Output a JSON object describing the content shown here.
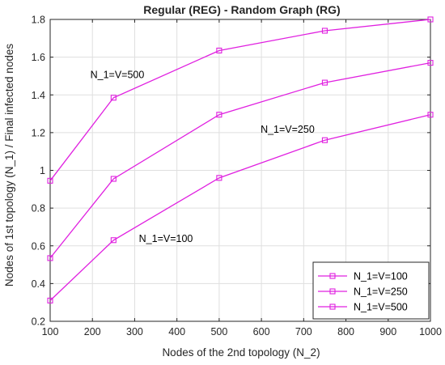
{
  "chart_data": {
    "type": "line",
    "title": "Regular (REG) - Random Graph (RG)",
    "xlabel": "Nodes of the 2nd topology (N_2)",
    "ylabel": "Nodes of 1st topology (N_1) / Final infected nodes",
    "xlim": [
      100,
      1000
    ],
    "ylim": [
      0.2,
      1.8
    ],
    "xticks": [
      100,
      200,
      300,
      400,
      500,
      600,
      700,
      800,
      900,
      1000
    ],
    "yticks": [
      0.2,
      0.4,
      0.6,
      0.8,
      1,
      1.2,
      1.4,
      1.6,
      1.8
    ],
    "xtick_labels": [
      "100",
      "200",
      "300",
      "400",
      "500",
      "600",
      "700",
      "800",
      "900",
      "1000"
    ],
    "ytick_labels": [
      "0.2",
      "0.4",
      "0.6",
      "0.8",
      "1",
      "1.2",
      "1.4",
      "1.6",
      "1.8"
    ],
    "grid": true,
    "legend_position": "bottom-right",
    "line_color": "#e020e0",
    "marker": "square",
    "x": [
      100,
      250,
      500,
      750,
      1000
    ],
    "series": [
      {
        "name": "N_1=V=100",
        "values": [
          0.31,
          0.63,
          0.96,
          1.16,
          1.295
        ]
      },
      {
        "name": "N_1=V=250",
        "values": [
          0.535,
          0.955,
          1.295,
          1.465,
          1.57
        ]
      },
      {
        "name": "N_1=V=500",
        "values": [
          0.945,
          1.385,
          1.635,
          1.74,
          1.8
        ]
      }
    ],
    "annotations": [
      {
        "text": "N_1=V=500",
        "x": 195,
        "y": 1.49
      },
      {
        "text": "N_1=V=250",
        "x": 598,
        "y": 1.2
      },
      {
        "text": "N_1=V=100",
        "x": 310,
        "y": 0.62
      }
    ]
  }
}
